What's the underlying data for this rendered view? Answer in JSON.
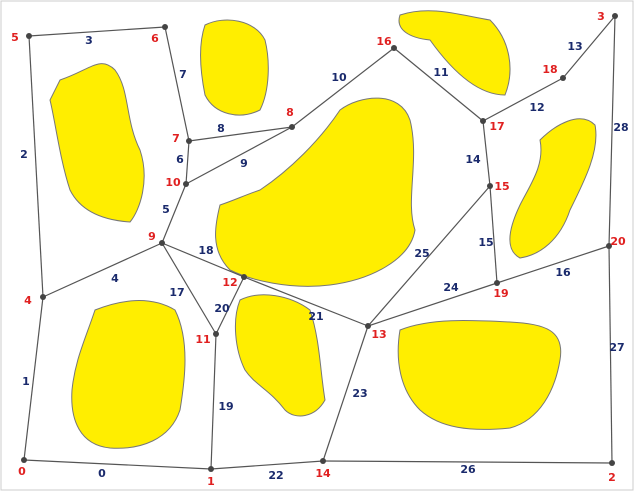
{
  "nodes": [
    {
      "label": "0"
    },
    {
      "label": "1"
    },
    {
      "label": "2"
    },
    {
      "label": "3"
    },
    {
      "label": "4"
    },
    {
      "label": "5"
    },
    {
      "label": "6"
    },
    {
      "label": "7"
    },
    {
      "label": "8"
    },
    {
      "label": "9"
    },
    {
      "label": "10"
    },
    {
      "label": "11"
    },
    {
      "label": "12"
    },
    {
      "label": "13"
    },
    {
      "label": "14"
    },
    {
      "label": "15"
    },
    {
      "label": "16"
    },
    {
      "label": "17"
    },
    {
      "label": "18"
    },
    {
      "label": "19"
    },
    {
      "label": "20"
    }
  ],
  "edges": [
    {
      "label": "0"
    },
    {
      "label": "1"
    },
    {
      "label": "2"
    },
    {
      "label": "3"
    },
    {
      "label": "4"
    },
    {
      "label": "5"
    },
    {
      "label": "6"
    },
    {
      "label": "7"
    },
    {
      "label": "8"
    },
    {
      "label": "9"
    },
    {
      "label": "10"
    },
    {
      "label": "11"
    },
    {
      "label": "12"
    },
    {
      "label": "13"
    },
    {
      "label": "14"
    },
    {
      "label": "15"
    },
    {
      "label": "16"
    },
    {
      "label": "17"
    },
    {
      "label": "18"
    },
    {
      "label": "19"
    },
    {
      "label": "20"
    },
    {
      "label": "21"
    },
    {
      "label": "22"
    },
    {
      "label": "23"
    },
    {
      "label": "24"
    },
    {
      "label": "25"
    },
    {
      "label": "26"
    },
    {
      "label": "27"
    },
    {
      "label": "28"
    }
  ]
}
